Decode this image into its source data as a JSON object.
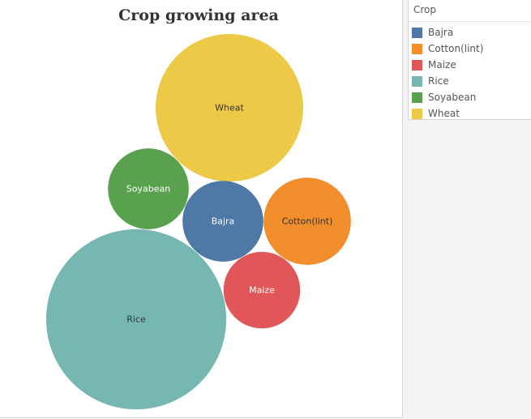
{
  "chart_data": {
    "type": "bubble",
    "title": "Crop growing area",
    "legend": {
      "title": "Crop",
      "placement": "top-right"
    },
    "series": [
      {
        "name": "Wheat",
        "area": 100,
        "color": "#EDC948",
        "label_color": "#333333"
      },
      {
        "name": "Soyabean",
        "area": 30,
        "color": "#59A14F",
        "label_color": "#ffffff"
      },
      {
        "name": "Bajra",
        "area": 30,
        "color": "#4E79A7",
        "label_color": "#ffffff"
      },
      {
        "name": "Cotton(lint)",
        "area": 35,
        "color": "#F28E2B",
        "label_color": "#333333"
      },
      {
        "name": "Maize",
        "area": 27,
        "color": "#E15759",
        "label_color": "#ffffff"
      },
      {
        "name": "Rice",
        "area": 149,
        "color": "#76B7B2",
        "label_color": "#333333"
      }
    ],
    "legend_order": [
      "Bajra",
      "Cotton(lint)",
      "Maize",
      "Rice",
      "Soyabean",
      "Wheat"
    ]
  }
}
